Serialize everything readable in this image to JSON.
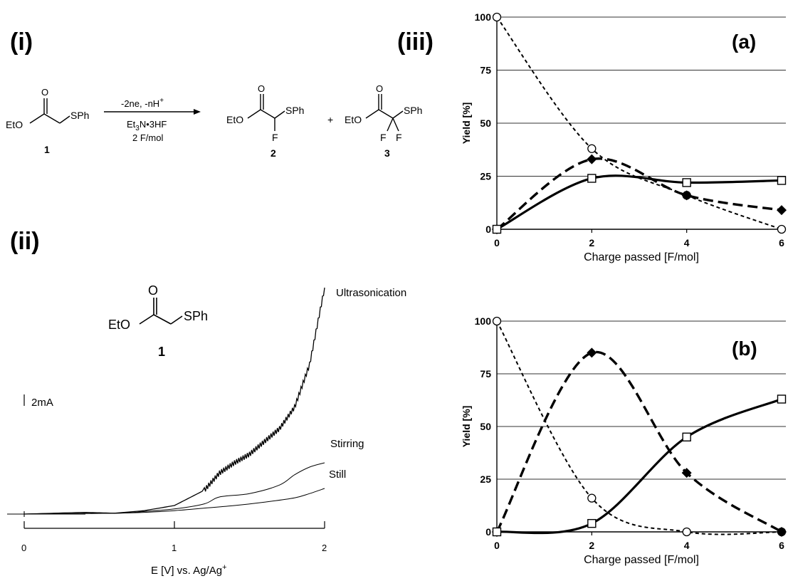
{
  "panels": {
    "i": "(i)",
    "ii": "(ii)",
    "iii": "(iii)"
  },
  "scheme": {
    "reactant": {
      "ester": "EtO",
      "group": "SPh",
      "number": "1"
    },
    "conditions": {
      "electron": "-2ne, -nH",
      "electron_sup": "+",
      "reagent_a": "Et",
      "reagent_sub": "3",
      "reagent_b": "N•3HF",
      "charge": "2 F/mol"
    },
    "product2": {
      "ester": "EtO",
      "group": "SPh",
      "f": "F",
      "number": "2"
    },
    "plus": "+",
    "product3": {
      "ester": "EtO",
      "group": "SPh",
      "f1": "F",
      "f2": "F",
      "number": "3"
    }
  },
  "cv": {
    "structure": {
      "ester": "EtO",
      "group": "SPh",
      "number": "1"
    },
    "scale_label": "2mA",
    "xlabel_pre": "E [V] vs. Ag/Ag",
    "xlabel_sup": "+"
  },
  "chart_data": [
    {
      "type": "line",
      "title": "",
      "xlabel": "E [V] vs. Ag/Ag+",
      "ylabel": "",
      "xlim": [
        0,
        2
      ],
      "xticks": [
        "0",
        "1",
        "2"
      ],
      "series": [
        {
          "name": "Ultrasonication",
          "x": [
            0,
            0.4,
            0.6,
            0.8,
            1.0,
            1.2,
            1.3,
            1.4,
            1.5,
            1.6,
            1.7,
            1.8,
            1.9,
            2.0
          ],
          "y": [
            0,
            0.2,
            0.1,
            0.4,
            1.0,
            2.8,
            4.8,
            6.0,
            7.0,
            8.5,
            10.0,
            12.5,
            17.5,
            26.5
          ]
        },
        {
          "name": "Stirring",
          "x": [
            0,
            0.6,
            0.8,
            1.0,
            1.2,
            1.3,
            1.5,
            1.7,
            1.8,
            1.9,
            2.0
          ],
          "y": [
            0,
            0.1,
            0.3,
            0.6,
            1.2,
            2.0,
            2.4,
            3.4,
            4.6,
            5.5,
            6.0
          ]
        },
        {
          "name": "Still",
          "x": [
            0,
            0.6,
            0.8,
            1.0,
            1.2,
            1.4,
            1.6,
            1.8,
            1.9,
            2.0
          ],
          "y": [
            0,
            0.1,
            0.2,
            0.4,
            0.7,
            1.0,
            1.4,
            1.9,
            2.4,
            3.0
          ]
        }
      ]
    },
    {
      "type": "line",
      "title": "(a)",
      "xlabel": "Charge passed [F/mol]",
      "ylabel": "Yield [%]",
      "xlim": [
        0,
        6
      ],
      "ylim": [
        0,
        100
      ],
      "x": [
        0,
        2,
        4,
        6
      ],
      "xticks": [
        "0",
        "2",
        "4",
        "6"
      ],
      "yticks": [
        "0",
        "25",
        "50",
        "75",
        "100"
      ],
      "grid": true,
      "series": [
        {
          "marker": "open-circle",
          "line": "short-dash",
          "values": [
            100,
            38,
            16,
            0
          ]
        },
        {
          "marker": "filled-diamond",
          "line": "long-dash",
          "values": [
            0,
            33,
            16,
            9
          ]
        },
        {
          "marker": "open-square",
          "line": "solid",
          "values": [
            0,
            24,
            22,
            23
          ]
        }
      ]
    },
    {
      "type": "line",
      "title": "(b)",
      "xlabel": "Charge passed [F/mol]",
      "ylabel": "Yield [%]",
      "xlim": [
        0,
        6
      ],
      "ylim": [
        0,
        100
      ],
      "x": [
        0,
        2,
        4,
        6
      ],
      "xticks": [
        "0",
        "2",
        "4",
        "6"
      ],
      "yticks": [
        "0",
        "25",
        "50",
        "75",
        "100"
      ],
      "grid": true,
      "series": [
        {
          "marker": "open-circle",
          "line": "short-dash",
          "values": [
            100,
            16,
            0,
            0
          ]
        },
        {
          "marker": "filled-diamond",
          "line": "long-dash",
          "values": [
            0,
            85,
            28,
            0
          ]
        },
        {
          "marker": "open-square",
          "line": "solid",
          "values": [
            0,
            4,
            45,
            63
          ]
        }
      ]
    }
  ]
}
